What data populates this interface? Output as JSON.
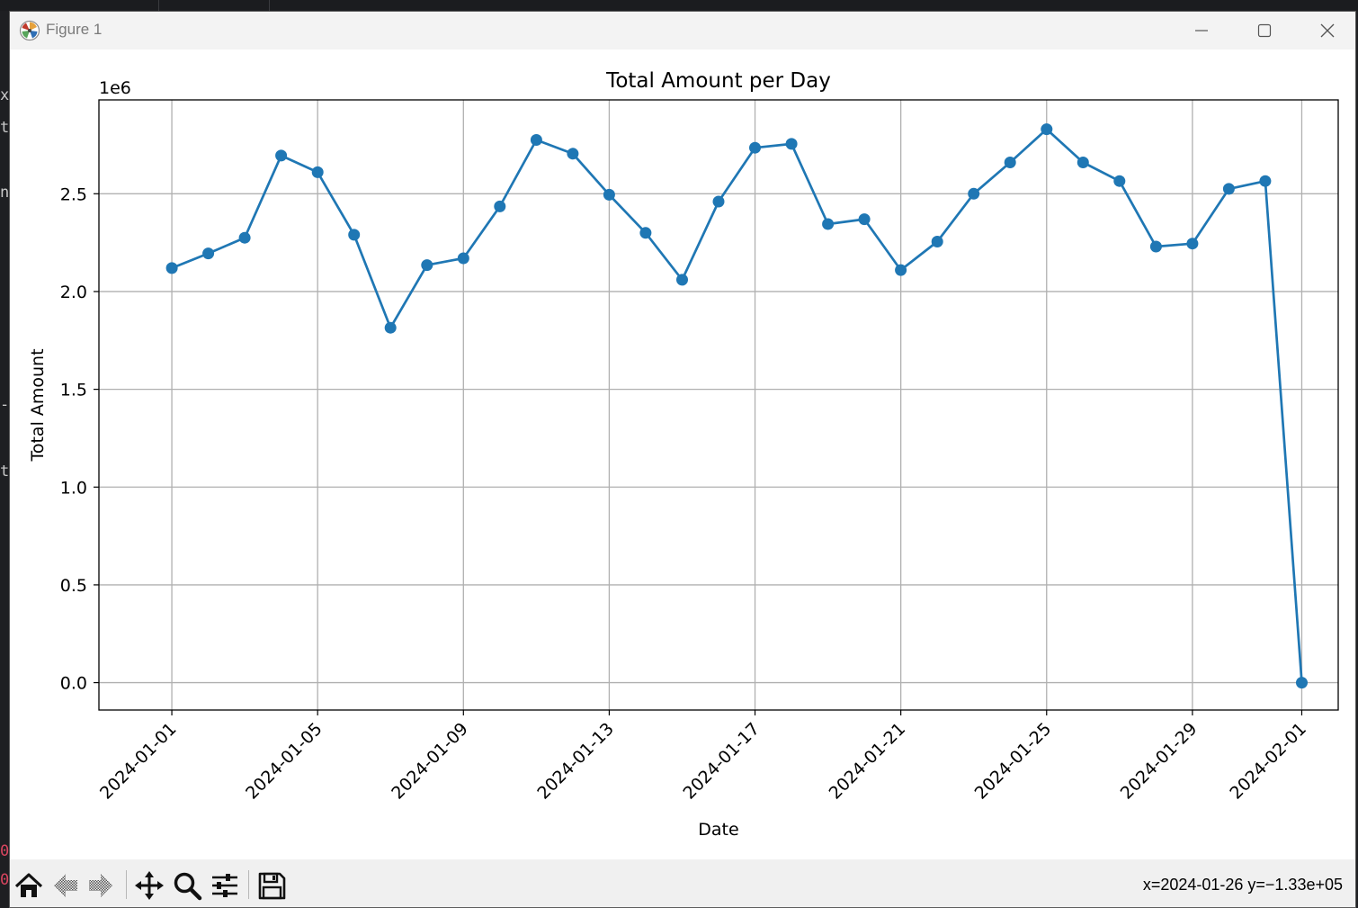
{
  "window": {
    "title": "Figure 1"
  },
  "toolbar": {
    "buttons": [
      {
        "name": "home-icon"
      },
      {
        "name": "back-icon"
      },
      {
        "name": "forward-icon"
      },
      {
        "name": "pan-icon"
      },
      {
        "name": "zoom-icon"
      },
      {
        "name": "configure-subplots-icon"
      },
      {
        "name": "save-icon"
      }
    ],
    "coords": "x=2024-01-26 y=−1.33e+05"
  },
  "background": {
    "glyphs": [
      "xt",
      "t",
      "n",
      "-",
      "t",
      "0",
      "0"
    ]
  },
  "colors": {
    "line": "#1f77b4",
    "grid": "#b0b0b0",
    "titlebar": "#f3f3f3",
    "toolbar": "#f0f0f0"
  },
  "chart_data": {
    "type": "line",
    "title": "Total Amount per Day",
    "xlabel": "Date",
    "ylabel": "Total Amount",
    "offset_label": "1e6",
    "marker": "circle",
    "grid": true,
    "x_ticks": [
      "2024-01-01",
      "2024-01-05",
      "2024-01-09",
      "2024-01-13",
      "2024-01-17",
      "2024-01-21",
      "2024-01-25",
      "2024-01-29",
      "2024-02-01"
    ],
    "y_ticks": [
      "0.0",
      "0.5",
      "1.0",
      "1.5",
      "2.0",
      "2.5"
    ],
    "y_tick_values": [
      0.0,
      0.5,
      1.0,
      1.5,
      2.0,
      2.5
    ],
    "ylim": [
      -0.14,
      2.98
    ],
    "xlim": [
      "2023-12-30",
      "2024-02-02"
    ],
    "series": [
      {
        "x": [
          "2024-01-01",
          "2024-01-02",
          "2024-01-03",
          "2024-01-04",
          "2024-01-05",
          "2024-01-06",
          "2024-01-07",
          "2024-01-08",
          "2024-01-09",
          "2024-01-10",
          "2024-01-11",
          "2024-01-12",
          "2024-01-13",
          "2024-01-14",
          "2024-01-15",
          "2024-01-16",
          "2024-01-17",
          "2024-01-18",
          "2024-01-19",
          "2024-01-20",
          "2024-01-21",
          "2024-01-22",
          "2024-01-23",
          "2024-01-24",
          "2024-01-25",
          "2024-01-26",
          "2024-01-27",
          "2024-01-28",
          "2024-01-29",
          "2024-01-30",
          "2024-01-31",
          "2024-02-01"
        ],
        "values": [
          2.12,
          2.195,
          2.275,
          2.695,
          2.61,
          2.29,
          1.815,
          2.135,
          2.17,
          2.435,
          2.775,
          2.705,
          2.495,
          2.3,
          2.06,
          2.46,
          2.735,
          2.755,
          2.345,
          2.37,
          2.11,
          2.255,
          2.5,
          2.66,
          2.83,
          2.66,
          2.565,
          2.23,
          2.245,
          2.525,
          2.565,
          0.0
        ]
      }
    ]
  }
}
